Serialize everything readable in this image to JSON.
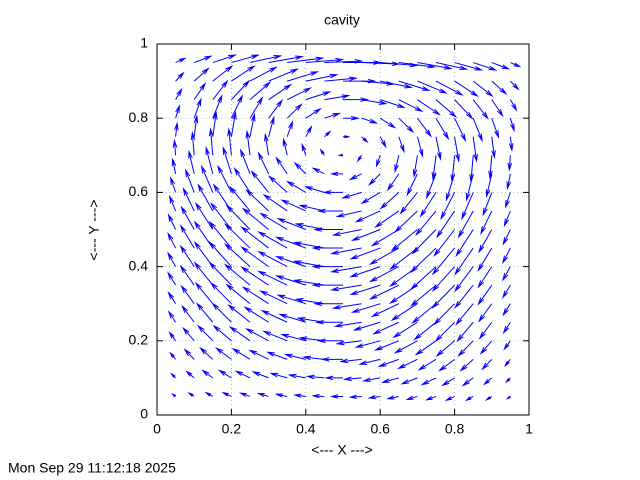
{
  "chart_data": {
    "type": "quiver",
    "title": "cavity",
    "xlabel": "<--- X --->",
    "ylabel": "<--- Y --->",
    "timestamp": "Mon Sep 29 11:12:18 2025",
    "color": "#0000ff",
    "grid": true,
    "xlim": [
      0,
      1
    ],
    "ylim": [
      0,
      1
    ],
    "xticks": [
      0,
      0.2,
      0.4,
      0.6,
      0.8,
      1
    ],
    "yticks": [
      0,
      0.2,
      0.4,
      0.6,
      0.8,
      1
    ],
    "x": [
      0.05,
      0.1,
      0.15,
      0.2,
      0.25,
      0.3,
      0.35,
      0.4,
      0.45,
      0.5,
      0.55,
      0.6,
      0.65,
      0.7,
      0.75,
      0.8,
      0.85,
      0.9,
      0.95
    ],
    "y": [
      0.05,
      0.1,
      0.15,
      0.2,
      0.25,
      0.3,
      0.35,
      0.4,
      0.45,
      0.5,
      0.55,
      0.6,
      0.65,
      0.7,
      0.75,
      0.8,
      0.85,
      0.9,
      0.95
    ],
    "u": [
      [
        -0.008,
        -0.014,
        -0.018,
        -0.022,
        -0.025,
        -0.027,
        -0.029,
        -0.029,
        -0.03,
        -0.03,
        -0.03,
        -0.029,
        -0.029,
        -0.027,
        -0.025,
        -0.022,
        -0.018,
        -0.014,
        -0.008
      ],
      [
        -0.011,
        -0.02,
        -0.027,
        -0.032,
        -0.037,
        -0.041,
        -0.043,
        -0.044,
        -0.045,
        -0.045,
        -0.045,
        -0.044,
        -0.043,
        -0.041,
        -0.037,
        -0.032,
        -0.027,
        -0.02,
        -0.011
      ],
      [
        -0.014,
        -0.025,
        -0.033,
        -0.04,
        -0.045,
        -0.05,
        -0.052,
        -0.054,
        -0.055,
        -0.055,
        -0.055,
        -0.054,
        -0.052,
        -0.05,
        -0.045,
        -0.04,
        -0.033,
        -0.025,
        -0.014
      ],
      [
        -0.016,
        -0.029,
        -0.039,
        -0.047,
        -0.053,
        -0.059,
        -0.062,
        -0.064,
        -0.065,
        -0.065,
        -0.065,
        -0.064,
        -0.062,
        -0.059,
        -0.053,
        -0.047,
        -0.039,
        -0.029,
        -0.016
      ],
      [
        -0.018,
        -0.032,
        -0.042,
        -0.05,
        -0.057,
        -0.063,
        -0.067,
        -0.069,
        -0.07,
        -0.07,
        -0.07,
        -0.069,
        -0.067,
        -0.063,
        -0.057,
        -0.05,
        -0.042,
        -0.032,
        -0.018
      ],
      [
        -0.019,
        -0.034,
        -0.045,
        -0.054,
        -0.062,
        -0.068,
        -0.071,
        -0.074,
        -0.075,
        -0.075,
        -0.075,
        -0.074,
        -0.071,
        -0.068,
        -0.062,
        -0.054,
        -0.045,
        -0.034,
        -0.019
      ],
      [
        -0.02,
        -0.036,
        -0.048,
        -0.058,
        -0.066,
        -0.072,
        -0.076,
        -0.078,
        -0.08,
        -0.08,
        -0.08,
        -0.078,
        -0.076,
        -0.072,
        -0.066,
        -0.058,
        -0.048,
        -0.036,
        -0.02
      ],
      [
        -0.02,
        -0.036,
        -0.048,
        -0.058,
        -0.066,
        -0.072,
        -0.076,
        -0.078,
        -0.08,
        -0.08,
        -0.08,
        -0.078,
        -0.076,
        -0.072,
        -0.066,
        -0.058,
        -0.048,
        -0.036,
        -0.02
      ],
      [
        -0.02,
        -0.036,
        -0.048,
        -0.058,
        -0.066,
        -0.072,
        -0.076,
        -0.078,
        -0.08,
        -0.08,
        -0.08,
        -0.078,
        -0.076,
        -0.072,
        -0.066,
        -0.058,
        -0.048,
        -0.036,
        -0.02
      ],
      [
        -0.019,
        -0.034,
        -0.045,
        -0.054,
        -0.062,
        -0.068,
        -0.071,
        -0.074,
        -0.075,
        -0.075,
        -0.075,
        -0.074,
        -0.071,
        -0.068,
        -0.062,
        -0.054,
        -0.045,
        -0.034,
        -0.019
      ],
      [
        -0.016,
        -0.029,
        -0.039,
        -0.047,
        -0.053,
        -0.059,
        -0.062,
        -0.064,
        -0.065,
        -0.065,
        -0.065,
        -0.064,
        -0.062,
        -0.059,
        -0.053,
        -0.047,
        -0.039,
        -0.029,
        -0.016
      ],
      [
        -0.013,
        -0.023,
        -0.03,
        -0.036,
        -0.041,
        -0.045,
        -0.048,
        -0.049,
        -0.05,
        -0.05,
        -0.05,
        -0.049,
        -0.048,
        -0.045,
        -0.041,
        -0.036,
        -0.03,
        -0.023,
        -0.013
      ],
      [
        -0.008,
        -0.014,
        -0.018,
        -0.022,
        -0.025,
        -0.027,
        -0.029,
        -0.029,
        -0.03,
        -0.03,
        -0.03,
        -0.029,
        -0.029,
        -0.027,
        -0.025,
        -0.022,
        -0.018,
        -0.014,
        -0.008
      ],
      [
        -0.003,
        -0.005,
        -0.006,
        -0.007,
        -0.008,
        -0.009,
        -0.01,
        -0.01,
        -0.01,
        -0.01,
        -0.01,
        -0.01,
        -0.01,
        -0.009,
        -0.008,
        -0.007,
        -0.006,
        -0.005,
        -0.003
      ],
      [
        0.004,
        0.007,
        0.009,
        0.011,
        0.012,
        0.014,
        0.014,
        0.015,
        0.015,
        0.015,
        0.015,
        0.015,
        0.014,
        0.014,
        0.012,
        0.011,
        0.009,
        0.007,
        0.004
      ],
      [
        0.01,
        0.018,
        0.024,
        0.029,
        0.033,
        0.036,
        0.038,
        0.039,
        0.04,
        0.04,
        0.04,
        0.039,
        0.038,
        0.036,
        0.033,
        0.029,
        0.024,
        0.018,
        0.01
      ],
      [
        0.016,
        0.029,
        0.039,
        0.047,
        0.053,
        0.059,
        0.062,
        0.064,
        0.065,
        0.065,
        0.065,
        0.064,
        0.062,
        0.059,
        0.053,
        0.047,
        0.039,
        0.029,
        0.016
      ],
      [
        0.021,
        0.038,
        0.051,
        0.061,
        0.07,
        0.077,
        0.081,
        0.083,
        0.085,
        0.085,
        0.085,
        0.083,
        0.081,
        0.077,
        0.07,
        0.061,
        0.051,
        0.038,
        0.021
      ],
      [
        0.025,
        0.045,
        0.06,
        0.072,
        0.082,
        0.09,
        0.095,
        0.098,
        0.1,
        0.1,
        0.1,
        0.098,
        0.095,
        0.09,
        0.082,
        0.072,
        0.06,
        0.045,
        0.025
      ]
    ],
    "v": [
      [
        0.006,
        0.009,
        0.01,
        0.01,
        0.009,
        0.008,
        0.006,
        0.004,
        0.002,
        0,
        -0.002,
        -0.004,
        -0.006,
        -0.008,
        -0.009,
        -0.01,
        -0.01,
        -0.009,
        -0.006
      ],
      [
        0.011,
        0.017,
        0.02,
        0.02,
        0.018,
        0.016,
        0.012,
        0.008,
        0.004,
        0,
        -0.004,
        -0.008,
        -0.012,
        -0.016,
        -0.018,
        -0.02,
        -0.02,
        -0.017,
        -0.011
      ],
      [
        0.017,
        0.026,
        0.03,
        0.03,
        0.028,
        0.024,
        0.019,
        0.013,
        0.006,
        0,
        -0.006,
        -0.013,
        -0.019,
        -0.024,
        -0.028,
        -0.03,
        -0.03,
        -0.026,
        -0.017
      ],
      [
        0.022,
        0.034,
        0.04,
        0.04,
        0.037,
        0.032,
        0.025,
        0.017,
        0.008,
        0,
        -0.008,
        -0.017,
        -0.025,
        -0.032,
        -0.037,
        -0.04,
        -0.04,
        -0.034,
        -0.022
      ],
      [
        0.028,
        0.043,
        0.05,
        0.05,
        0.046,
        0.04,
        0.031,
        0.021,
        0.011,
        0,
        -0.011,
        -0.021,
        -0.031,
        -0.04,
        -0.046,
        -0.05,
        -0.05,
        -0.043,
        -0.028
      ],
      [
        0.03,
        0.047,
        0.055,
        0.055,
        0.051,
        0.044,
        0.034,
        0.023,
        0.012,
        0,
        -0.012,
        -0.023,
        -0.034,
        -0.044,
        -0.051,
        -0.055,
        -0.055,
        -0.047,
        -0.03
      ],
      [
        0.033,
        0.051,
        0.06,
        0.06,
        0.055,
        0.048,
        0.037,
        0.025,
        0.013,
        0,
        -0.013,
        -0.025,
        -0.037,
        -0.048,
        -0.055,
        -0.06,
        -0.06,
        -0.051,
        -0.033
      ],
      [
        0.036,
        0.055,
        0.065,
        0.065,
        0.06,
        0.052,
        0.04,
        0.027,
        0.014,
        0,
        -0.014,
        -0.027,
        -0.04,
        -0.052,
        -0.06,
        -0.065,
        -0.065,
        -0.055,
        -0.036
      ],
      [
        0.039,
        0.06,
        0.07,
        0.07,
        0.064,
        0.056,
        0.043,
        0.029,
        0.015,
        0,
        -0.015,
        -0.029,
        -0.043,
        -0.056,
        -0.064,
        -0.07,
        -0.07,
        -0.06,
        -0.039
      ],
      [
        0.039,
        0.06,
        0.07,
        0.07,
        0.064,
        0.056,
        0.043,
        0.029,
        0.015,
        0,
        -0.015,
        -0.029,
        -0.043,
        -0.056,
        -0.064,
        -0.07,
        -0.07,
        -0.06,
        -0.039
      ],
      [
        0.039,
        0.06,
        0.07,
        0.07,
        0.064,
        0.056,
        0.043,
        0.029,
        0.015,
        0,
        -0.015,
        -0.029,
        -0.043,
        -0.056,
        -0.064,
        -0.07,
        -0.07,
        -0.06,
        -0.039
      ],
      [
        0.039,
        0.06,
        0.07,
        0.07,
        0.064,
        0.056,
        0.043,
        0.029,
        0.015,
        0,
        -0.015,
        -0.029,
        -0.043,
        -0.056,
        -0.064,
        -0.07,
        -0.07,
        -0.06,
        -0.039
      ],
      [
        0.039,
        0.06,
        0.07,
        0.07,
        0.064,
        0.056,
        0.043,
        0.029,
        0.015,
        0,
        -0.015,
        -0.029,
        -0.043,
        -0.056,
        -0.064,
        -0.07,
        -0.07,
        -0.06,
        -0.039
      ],
      [
        0.039,
        0.06,
        0.07,
        0.07,
        0.064,
        0.056,
        0.043,
        0.029,
        0.015,
        0,
        -0.015,
        -0.029,
        -0.043,
        -0.056,
        -0.064,
        -0.07,
        -0.07,
        -0.06,
        -0.039
      ],
      [
        0.036,
        0.055,
        0.065,
        0.065,
        0.06,
        0.052,
        0.04,
        0.027,
        0.014,
        0,
        -0.014,
        -0.027,
        -0.04,
        -0.052,
        -0.06,
        -0.065,
        -0.065,
        -0.055,
        -0.036
      ],
      [
        0.033,
        0.051,
        0.06,
        0.06,
        0.055,
        0.048,
        0.037,
        0.025,
        0.013,
        0,
        -0.013,
        -0.025,
        -0.037,
        -0.048,
        -0.055,
        -0.06,
        -0.06,
        -0.051,
        -0.033
      ],
      [
        0.028,
        0.043,
        0.05,
        0.05,
        0.046,
        0.04,
        0.031,
        0.021,
        0.011,
        0,
        -0.011,
        -0.021,
        -0.031,
        -0.04,
        -0.046,
        -0.05,
        -0.05,
        -0.043,
        -0.028
      ],
      [
        0.022,
        0.034,
        0.04,
        0.04,
        0.037,
        0.032,
        0.025,
        0.017,
        0.008,
        0,
        -0.008,
        -0.017,
        -0.025,
        -0.032,
        -0.037,
        -0.04,
        -0.04,
        -0.034,
        -0.022
      ],
      [
        0.011,
        0.017,
        0.02,
        0.02,
        0.018,
        0.016,
        0.012,
        0.008,
        0.004,
        0,
        -0.004,
        -0.008,
        -0.012,
        -0.016,
        -0.018,
        -0.02,
        -0.02,
        -0.017,
        -0.011
      ]
    ]
  }
}
